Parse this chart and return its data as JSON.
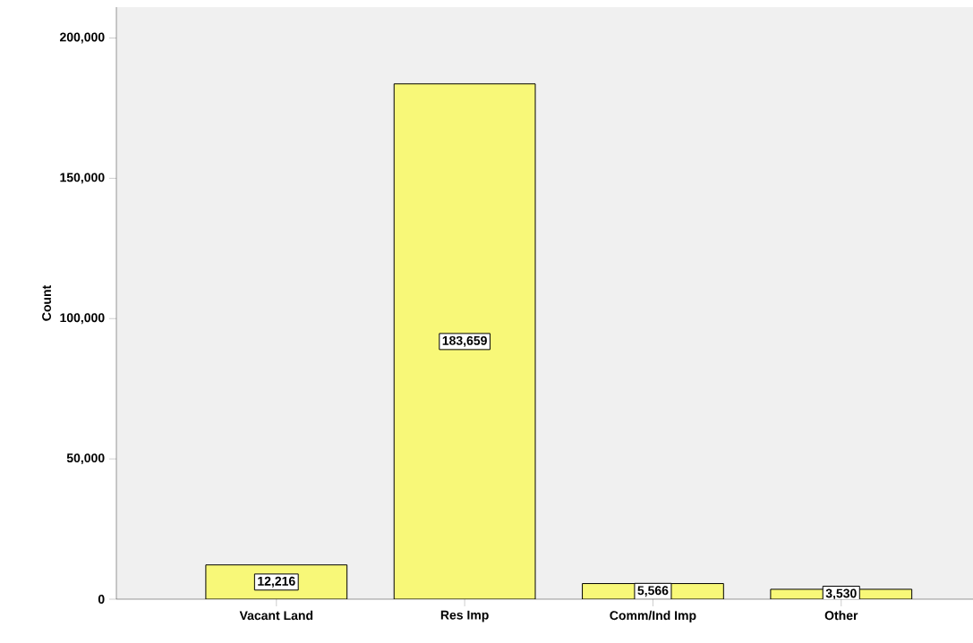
{
  "chart_data": {
    "type": "bar",
    "ylabel": "Count",
    "categories": [
      "Vacant Land",
      "Res Imp",
      "Comm/Ind Imp",
      "Other"
    ],
    "values": [
      12216,
      183659,
      5566,
      3530
    ],
    "value_labels": [
      "12,216",
      "183,659",
      "5,566",
      "3,530"
    ],
    "color": "#f8f878",
    "ylim": [
      0,
      211000
    ],
    "yticks": [
      {
        "value": 0,
        "label": "0"
      },
      {
        "value": 50000,
        "label": "50,000"
      },
      {
        "value": 100000,
        "label": "100,000"
      },
      {
        "value": 150000,
        "label": "150,000"
      },
      {
        "value": 200000,
        "label": "200,000"
      }
    ]
  }
}
